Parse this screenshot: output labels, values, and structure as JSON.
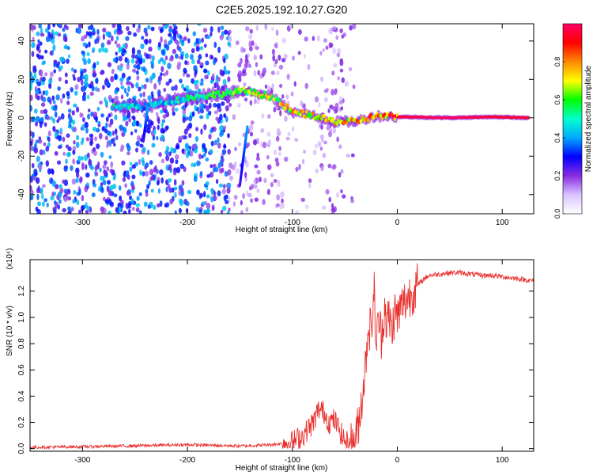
{
  "title": "C2E5.2025.192.10.27.G20",
  "chart_data": [
    {
      "type": "heatmap",
      "xlabel": "Height of straight line (km)",
      "ylabel": "Frequency (Hz)",
      "xlim": [
        -350,
        130
      ],
      "ylim": [
        -50,
        49
      ],
      "xticks": [
        -300,
        -200,
        -100,
        0,
        100
      ],
      "yticks": [
        -40,
        -20,
        0,
        20,
        40
      ],
      "colorbar": {
        "label": "Normalized spectral amplitude",
        "range": [
          0,
          1
        ],
        "ticks": [
          0.0,
          0.2,
          0.4,
          0.6,
          0.8
        ],
        "colormap": [
          "#ffffff",
          "#d9c4ff",
          "#8a2be2",
          "#0000ff",
          "#00aaff",
          "#00ffcc",
          "#00ff00",
          "#ffff00",
          "#ff8800",
          "#ff0000",
          "#ff0066"
        ]
      },
      "ridge": [
        {
          "x": -270,
          "y": 6,
          "amp": 0.55
        },
        {
          "x": -240,
          "y": 6,
          "amp": 0.45
        },
        {
          "x": -205,
          "y": 10,
          "amp": 0.55
        },
        {
          "x": -145,
          "y": 14,
          "amp": 0.7
        },
        {
          "x": -120,
          "y": 11,
          "amp": 0.75
        },
        {
          "x": -100,
          "y": 3,
          "amp": 0.8
        },
        {
          "x": -80,
          "y": 1,
          "amp": 0.85
        },
        {
          "x": -60,
          "y": -2,
          "amp": 0.85
        },
        {
          "x": -40,
          "y": -2,
          "amp": 0.85
        },
        {
          "x": -20,
          "y": 1,
          "amp": 0.9
        },
        {
          "x": 0,
          "y": 0.5,
          "amp": 0.95
        },
        {
          "x": 50,
          "y": 0,
          "amp": 1.0
        },
        {
          "x": 90,
          "y": 0.5,
          "amp": 0.95
        },
        {
          "x": 125,
          "y": 0,
          "amp": 0.95
        }
      ],
      "streaks": [
        {
          "x": [
            -150,
            -143
          ],
          "y": [
            -35,
            -5
          ]
        },
        {
          "x": [
            -242,
            -238
          ],
          "y": [
            -12,
            5
          ]
        }
      ]
    },
    {
      "type": "line",
      "xlabel": "Height of straight line (km)",
      "ylabel": "SNR (10 * v/v)",
      "y_multiplier": "(x10⁴)",
      "xlim": [
        -350,
        130
      ],
      "ylim": [
        -0.02,
        1.44
      ],
      "xticks": [
        -300,
        -200,
        -100,
        0,
        100
      ],
      "yticks": [
        0.0,
        0.2,
        0.4,
        0.6,
        0.8,
        1.0,
        1.2
      ],
      "color": "#e8302d",
      "series": [
        {
          "x": [
            -350,
            -300,
            -260,
            -200,
            -150,
            -120,
            -100,
            -90,
            -80,
            -75,
            -70,
            -65,
            -60,
            -55,
            -50,
            -45,
            -40,
            -35,
            -30,
            -28,
            -25,
            -22,
            -20,
            -18,
            -15,
            -12,
            -10,
            -8,
            -5,
            -2,
            0,
            5,
            10,
            15,
            20,
            25,
            30,
            40,
            50,
            60,
            70,
            80,
            90,
            100,
            110,
            120,
            127
          ],
          "y": [
            0.01,
            0.015,
            0.02,
            0.03,
            0.02,
            0.03,
            0.05,
            0.1,
            0.2,
            0.3,
            0.28,
            0.2,
            0.22,
            0.14,
            0.06,
            0.03,
            0.05,
            0.3,
            0.65,
            0.95,
            0.9,
            1.2,
            0.75,
            1.0,
            0.85,
            1.1,
            0.95,
            1.0,
            0.9,
            1.05,
            1.0,
            1.1,
            1.15,
            1.2,
            1.25,
            1.29,
            1.32,
            1.33,
            1.34,
            1.34,
            1.33,
            1.32,
            1.32,
            1.31,
            1.3,
            1.29,
            1.28
          ]
        }
      ]
    }
  ]
}
